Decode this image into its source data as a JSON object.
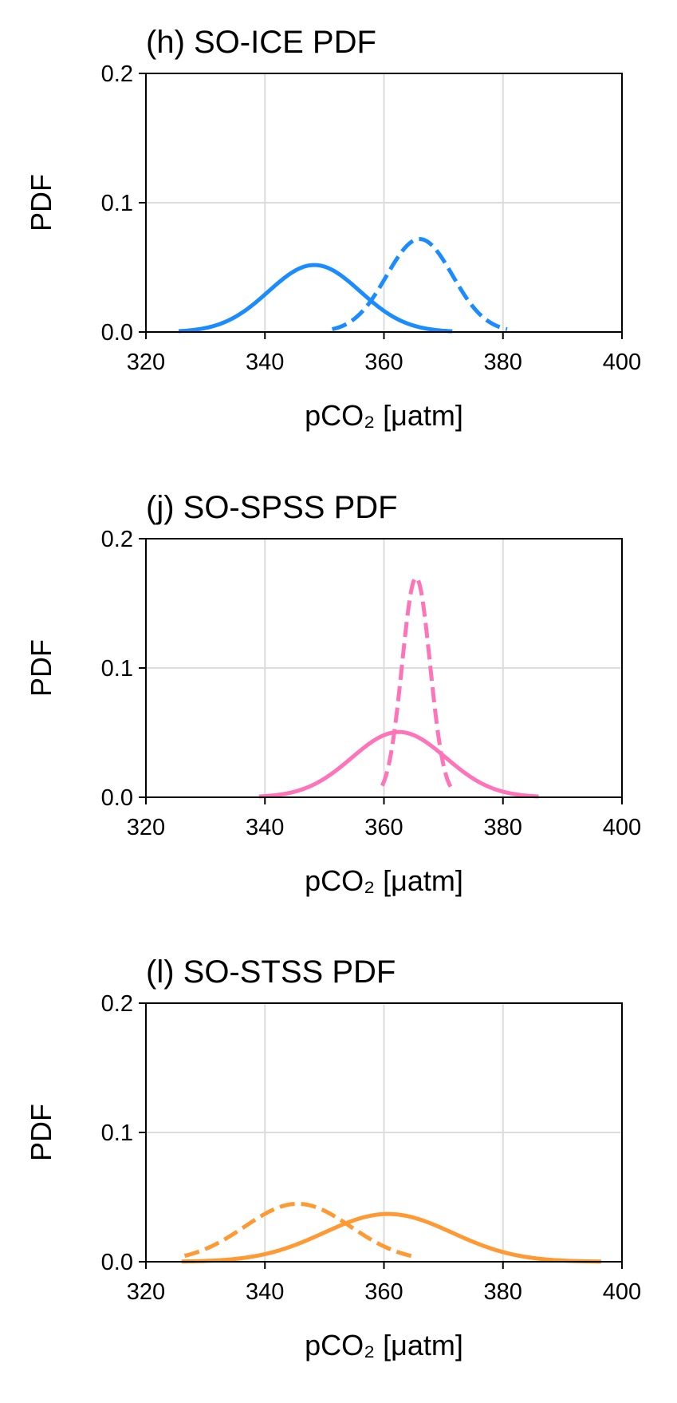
{
  "chart_data": [
    {
      "type": "line",
      "title": "(h) SO-ICE PDF",
      "xlabel": "pCO₂ [μatm]",
      "ylabel": "PDF",
      "xlim": [
        320,
        400
      ],
      "ylim": [
        0,
        0.2
      ],
      "xticks": [
        "320",
        "340",
        "360",
        "380",
        "400"
      ],
      "yticks": [
        "0.0",
        "0.1",
        "0.2"
      ],
      "grid": true,
      "color": "#1a8cff",
      "series": [
        {
          "style": "solid",
          "mean": 348.3,
          "sd": 7.7,
          "xmin": 325.5,
          "xmax": 371.5
        },
        {
          "style": "dashed",
          "mean": 366.0,
          "sd": 5.55,
          "xmin": 351.3,
          "xmax": 380.7
        }
      ]
    },
    {
      "type": "line",
      "title": "(j) SO-SPSS PDF",
      "xlabel": "pCO₂ [μatm]",
      "ylabel": "PDF",
      "xlim": [
        320,
        400
      ],
      "ylim": [
        0,
        0.2
      ],
      "xticks": [
        "320",
        "340",
        "360",
        "380",
        "400"
      ],
      "yticks": [
        "0.0",
        "0.1",
        "0.2"
      ],
      "grid": true,
      "color": "#ff73b9",
      "series": [
        {
          "style": "solid",
          "mean": 362.5,
          "sd": 7.9,
          "xmin": 339.0,
          "xmax": 386.0
        },
        {
          "style": "dashed",
          "mean": 365.4,
          "sd": 2.35,
          "xmin": 359.7,
          "xmax": 371.2
        }
      ]
    },
    {
      "type": "line",
      "title": "(l) SO-STSS PDF",
      "xlabel": "pCO₂ [μatm]",
      "ylabel": "PDF",
      "xlim": [
        320,
        400
      ],
      "ylim": [
        0,
        0.2
      ],
      "xticks": [
        "320",
        "340",
        "360",
        "380",
        "400"
      ],
      "yticks": [
        "0.0",
        "0.1",
        "0.2"
      ],
      "grid": true,
      "color": "#ff9933",
      "series": [
        {
          "style": "solid",
          "mean": 360.7,
          "sd": 10.8,
          "xmin": 326.0,
          "xmax": 396.5
        },
        {
          "style": "dashed",
          "mean": 345.5,
          "sd": 8.9,
          "xmin": 326.5,
          "xmax": 365.5
        }
      ]
    }
  ]
}
